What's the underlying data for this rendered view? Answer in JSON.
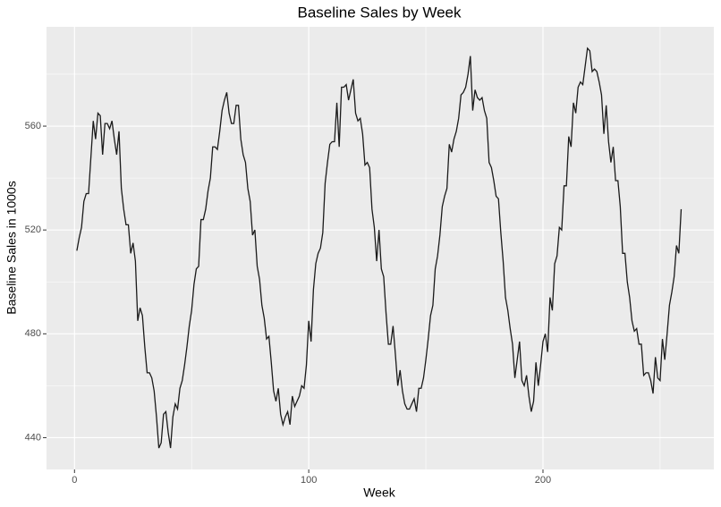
{
  "chart_data": {
    "type": "line",
    "title": "Baseline Sales by Week",
    "x_label": "Week",
    "y_label": "Baseline Sales in 1000s",
    "x": [
      1,
      2,
      3,
      4,
      5,
      6,
      7,
      8,
      9,
      10,
      11,
      12,
      13,
      14,
      15,
      16,
      17,
      18,
      19,
      20,
      21,
      22,
      23,
      24,
      25,
      26,
      27,
      28,
      29,
      30,
      31,
      32,
      33,
      34,
      35,
      36,
      37,
      38,
      39,
      40,
      41,
      42,
      43,
      44,
      45,
      46,
      47,
      48,
      49,
      50,
      51,
      52,
      53,
      54,
      55,
      56,
      57,
      58,
      59,
      60,
      61,
      62,
      63,
      64,
      65,
      66,
      67,
      68,
      69,
      70,
      71,
      72,
      73,
      74,
      75,
      76,
      77,
      78,
      79,
      80,
      81,
      82,
      83,
      84,
      85,
      86,
      87,
      88,
      89,
      90,
      91,
      92,
      93,
      94,
      95,
      96,
      97,
      98,
      99,
      100,
      101,
      102,
      103,
      104,
      105,
      106,
      107,
      108,
      109,
      110,
      111,
      112,
      113,
      114,
      115,
      116,
      117,
      118,
      119,
      120,
      121,
      122,
      123,
      124,
      125,
      126,
      127,
      128,
      129,
      130,
      131,
      132,
      133,
      134,
      135,
      136,
      137,
      138,
      139,
      140,
      141,
      142,
      143,
      144,
      145,
      146,
      147,
      148,
      149,
      150,
      151,
      152,
      153,
      154,
      155,
      156,
      157,
      158,
      159,
      160,
      161,
      162,
      163,
      164,
      165,
      166,
      167,
      168,
      169,
      170,
      171,
      172,
      173,
      174,
      175,
      176,
      177,
      178,
      179,
      180,
      181,
      182,
      183,
      184,
      185,
      186,
      187,
      188,
      189,
      190,
      191,
      192,
      193,
      194,
      195,
      196,
      197,
      198,
      199,
      200,
      201,
      202,
      203,
      204,
      205,
      206,
      207,
      208,
      209,
      210,
      211,
      212,
      213,
      214,
      215,
      216,
      217,
      218,
      219,
      220,
      221,
      222,
      223,
      224,
      225,
      226,
      227,
      228,
      229,
      230,
      231,
      232,
      233,
      234,
      235,
      236,
      237,
      238,
      239,
      240,
      241,
      242,
      243,
      244,
      245,
      246,
      247,
      248,
      249,
      250,
      251,
      252,
      253,
      254,
      255,
      256,
      257,
      258,
      259
    ],
    "series": [
      {
        "color": "#1a1a1a",
        "values": [
          512,
          517,
          521,
          531,
          534,
          534,
          548,
          562,
          555,
          565,
          564,
          549,
          561,
          561,
          559,
          562,
          555,
          549,
          558,
          536,
          528,
          522,
          522,
          511,
          515,
          508,
          485,
          490,
          487,
          475,
          465,
          465,
          463,
          458,
          448,
          436,
          438,
          449,
          450,
          442,
          436,
          448,
          453,
          451,
          459,
          462,
          468,
          475,
          483,
          489,
          499,
          505,
          506,
          524,
          524,
          528,
          535,
          540,
          552,
          552,
          551,
          558,
          566,
          570,
          573,
          565,
          561,
          561,
          568,
          568,
          555,
          549,
          546,
          536,
          531,
          518,
          520,
          506,
          501,
          491,
          486,
          478,
          479,
          469,
          458,
          454,
          459,
          449,
          445,
          448,
          450,
          445,
          456,
          452,
          454,
          456,
          460,
          459,
          468,
          485,
          477,
          497,
          507,
          511,
          513,
          519,
          538,
          546,
          553,
          554,
          554,
          569,
          552,
          575,
          575,
          576,
          570,
          574,
          578,
          565,
          562,
          563,
          557,
          545,
          546,
          544,
          528,
          521,
          508,
          520,
          505,
          502,
          488,
          476,
          476,
          483,
          472,
          460,
          466,
          458,
          453,
          451,
          451,
          453,
          455,
          450,
          459,
          459,
          463,
          470,
          478,
          487,
          491,
          505,
          510,
          518,
          529,
          533,
          536,
          553,
          550,
          555,
          558,
          563,
          572,
          573,
          575,
          580,
          587,
          566,
          574,
          571,
          570,
          571,
          566,
          563,
          546,
          544,
          539,
          533,
          532,
          519,
          508,
          494,
          489,
          482,
          476,
          463,
          470,
          477,
          462,
          460,
          464,
          456,
          450,
          454,
          469,
          460,
          468,
          477,
          480,
          473,
          494,
          489,
          507,
          510,
          521,
          520,
          537,
          537,
          556,
          552,
          569,
          565,
          575,
          577,
          576,
          583,
          590,
          589,
          581,
          582,
          581,
          577,
          572,
          557,
          568,
          554,
          546,
          552,
          539,
          539,
          529,
          511,
          511,
          500,
          494,
          485,
          481,
          482,
          476,
          476,
          464,
          465,
          465,
          462,
          457,
          471,
          463,
          462,
          478,
          470,
          480,
          491,
          496,
          502,
          514,
          511,
          528
        ]
      }
    ],
    "xlim": [
      -11.95,
      272.95
    ],
    "xticks": [
      0,
      100,
      200
    ],
    "x_minor_ticks": [
      50,
      150,
      250
    ],
    "ylim": [
      427.75,
      598.25
    ],
    "yticks": [
      440,
      480,
      520,
      560
    ],
    "y_minor_ticks": [
      460,
      500,
      540,
      580
    ],
    "grid": true,
    "panel_color": "#ebebeb"
  }
}
